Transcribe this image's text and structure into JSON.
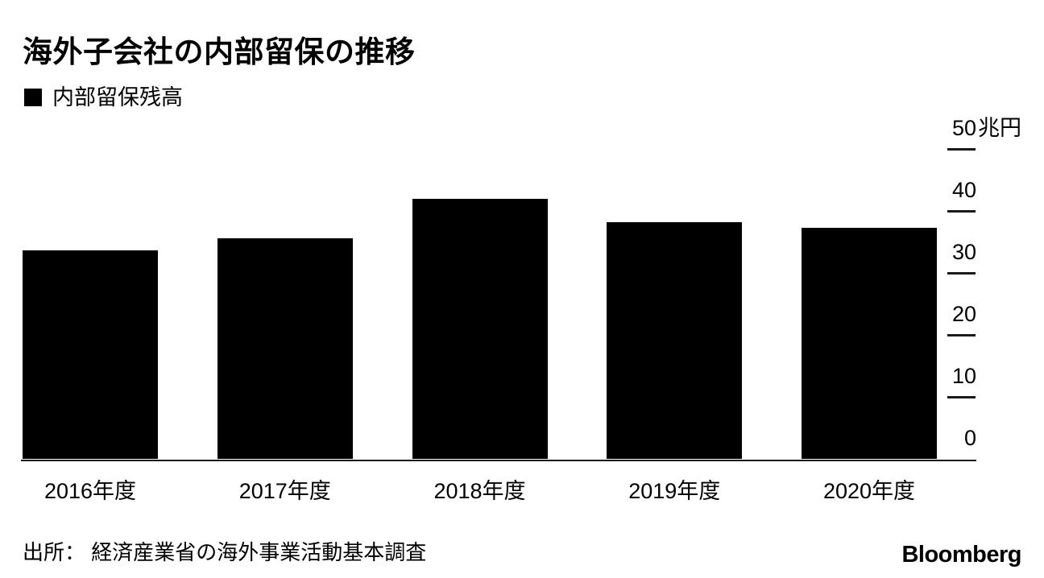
{
  "chart_data": {
    "type": "bar",
    "title": "海外子会社の内部留保の推移",
    "legend": "内部留保残高",
    "categories": [
      "2016年度",
      "2017年度",
      "2018年度",
      "2019年度",
      "2020年度"
    ],
    "values": [
      33.7,
      35.7,
      42.0,
      38.2,
      37.4
    ],
    "unit": "兆円",
    "ylim": [
      0,
      50
    ],
    "yticks": [
      {
        "value": 50,
        "num": "50",
        "suffix": "兆円"
      },
      {
        "value": 40,
        "num": "40",
        "suffix": ""
      },
      {
        "value": 30,
        "num": "30",
        "suffix": ""
      },
      {
        "value": 20,
        "num": "20",
        "suffix": ""
      },
      {
        "value": 10,
        "num": "10",
        "suffix": ""
      },
      {
        "value": 0,
        "num": "0",
        "suffix": ""
      }
    ],
    "bar_color": "#000000",
    "legend_position": "top-left",
    "y_axis_side": "right",
    "grid": false
  },
  "source": "出所： 経済産業省の海外事業活動基本調査",
  "brand": "Bloomberg",
  "colors": {
    "bar": "#000000",
    "text": "#000000",
    "axis": "#1a1a1a",
    "background": "#ffffff"
  }
}
